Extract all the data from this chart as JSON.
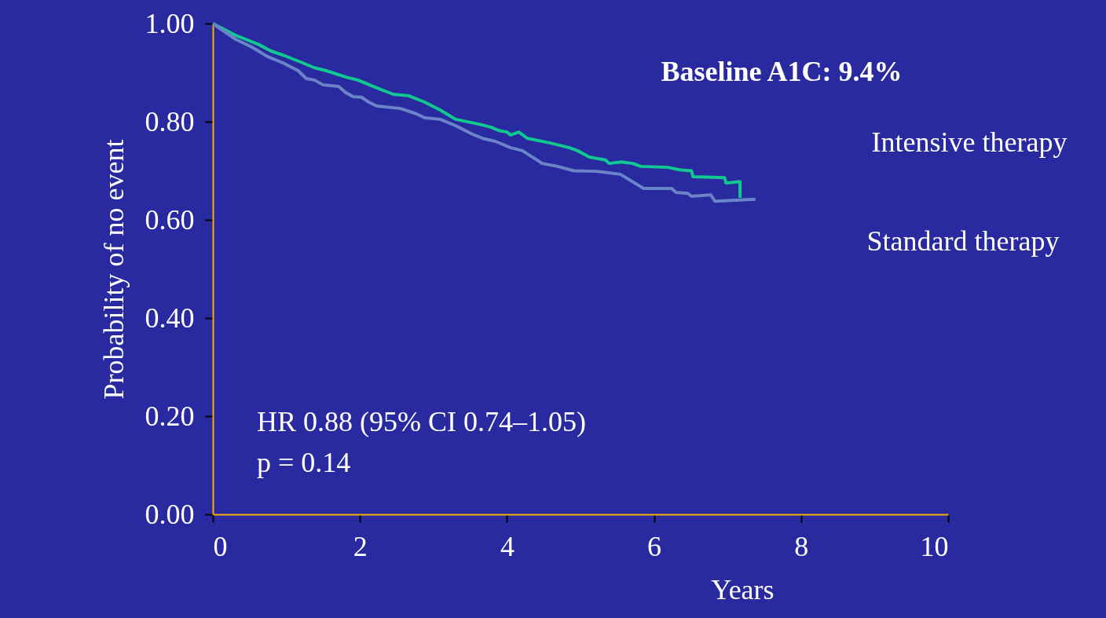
{
  "chart_data": {
    "type": "line",
    "title": "Baseline A1C: 9.4%",
    "xlabel": "Years",
    "ylabel": "Probability of no event",
    "xlim": [
      0,
      10
    ],
    "xticks": [
      0,
      2,
      4,
      6,
      8,
      10
    ],
    "ylim": [
      0,
      1
    ],
    "yticks": [
      {
        "value": 0,
        "label": "0.00"
      },
      {
        "value": 0.2,
        "label": "0.20"
      },
      {
        "value": 0.4,
        "label": "0.40"
      },
      {
        "value": 0.6,
        "label": "0.60"
      },
      {
        "value": 0.8,
        "label": "0.80"
      },
      {
        "value": 1,
        "label": "1.00"
      }
    ],
    "grid": false,
    "annotations": [
      "HR 0.88 (95% CI 0.74–1.05)",
      "p = 0.14"
    ],
    "series": [
      {
        "name": "Intensive therapy",
        "color": "#10c890",
        "x": [
          0,
          0.31,
          0.63,
          0.79,
          0.95,
          1.22,
          1.38,
          1.54,
          1.81,
          1.97,
          2.23,
          2.45,
          2.66,
          2.88,
          3.09,
          3.3,
          3.62,
          3.78,
          3.89,
          4.0,
          4.05,
          4.16,
          4.28,
          4.58,
          4.85,
          4.96,
          5.12,
          5.34,
          5.39,
          5.55,
          5.71,
          5.82,
          6.19,
          6.35,
          6.51,
          6.53,
          6.96,
          6.98,
          7.17,
          7.17
        ],
        "values": [
          1.0,
          0.976,
          0.957,
          0.944,
          0.936,
          0.92,
          0.91,
          0.904,
          0.891,
          0.885,
          0.869,
          0.856,
          0.853,
          0.84,
          0.824,
          0.805,
          0.795,
          0.789,
          0.782,
          0.779,
          0.773,
          0.779,
          0.766,
          0.757,
          0.747,
          0.741,
          0.728,
          0.722,
          0.715,
          0.718,
          0.715,
          0.709,
          0.707,
          0.702,
          0.7,
          0.688,
          0.686,
          0.675,
          0.678,
          0.645
        ]
      },
      {
        "name": "Standard therapy",
        "color": "#6a84c8",
        "x": [
          0,
          0.31,
          0.42,
          0.53,
          0.74,
          0.95,
          1.16,
          1.27,
          1.38,
          1.5,
          1.71,
          1.81,
          1.91,
          2.02,
          2.12,
          2.23,
          2.55,
          2.77,
          2.88,
          3.09,
          3.3,
          3.51,
          3.67,
          3.84,
          3.94,
          4.05,
          4.21,
          4.48,
          4.69,
          4.91,
          5.22,
          5.54,
          5.86,
          6.24,
          6.3,
          6.46,
          6.51,
          6.77,
          6.83,
          7.38
        ],
        "values": [
          1.0,
          0.968,
          0.96,
          0.952,
          0.933,
          0.92,
          0.904,
          0.888,
          0.885,
          0.875,
          0.872,
          0.859,
          0.851,
          0.85,
          0.84,
          0.832,
          0.827,
          0.816,
          0.808,
          0.805,
          0.792,
          0.776,
          0.766,
          0.76,
          0.754,
          0.747,
          0.741,
          0.715,
          0.709,
          0.7,
          0.699,
          0.693,
          0.664,
          0.664,
          0.656,
          0.654,
          0.648,
          0.651,
          0.638,
          0.642
        ]
      }
    ]
  }
}
